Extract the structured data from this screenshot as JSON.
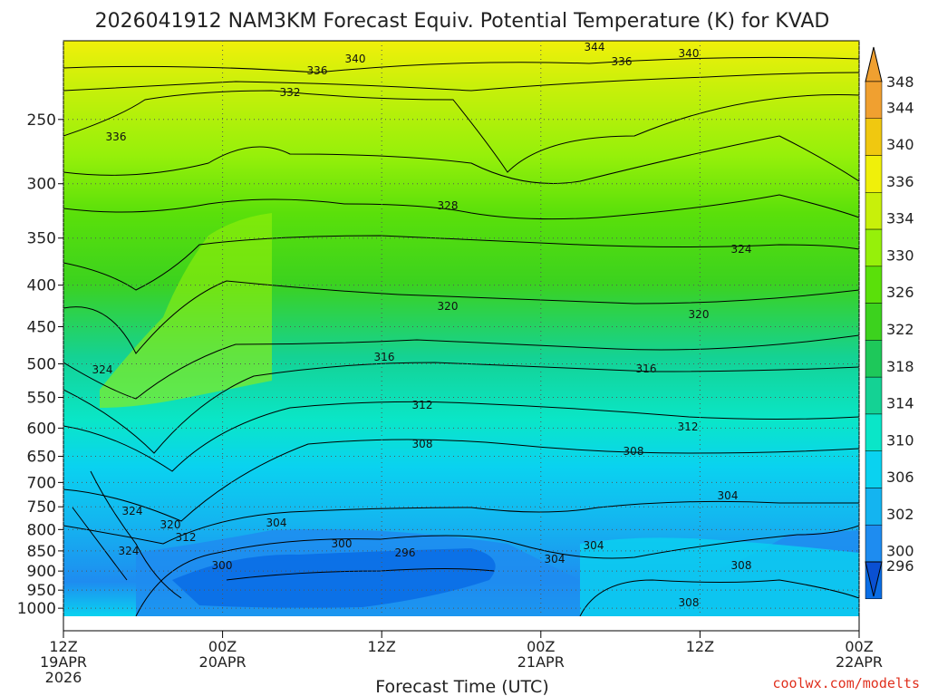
{
  "chart_data": {
    "type": "heatmap",
    "title": "2026041912 NAM3KM Forecast Equiv. Potential Temperature (K) for KVAD",
    "xlabel": "Forecast Time (UTC)",
    "ylabel": "",
    "y_ticks": [
      "250",
      "300",
      "350",
      "400",
      "450",
      "500",
      "550",
      "600",
      "650",
      "700",
      "750",
      "800",
      "850",
      "900",
      "950",
      "1000"
    ],
    "x_ticks": [
      {
        "line1": "12Z",
        "line2": "19APR",
        "line3": "2026"
      },
      {
        "line1": "00Z",
        "line2": "20APR",
        "line3": ""
      },
      {
        "line1": "12Z",
        "line2": "",
        "line3": ""
      },
      {
        "line1": "00Z",
        "line2": "21APR",
        "line3": ""
      },
      {
        "line1": "12Z",
        "line2": "",
        "line3": ""
      },
      {
        "line1": "00Z",
        "line2": "22APR",
        "line3": ""
      }
    ],
    "x_range_hours": [
      0,
      60
    ],
    "y_range_hpa": [
      200,
      1010
    ],
    "contour_labels": [
      "344",
      "340",
      "336",
      "332",
      "328",
      "324",
      "320",
      "316",
      "312",
      "308",
      "304",
      "300",
      "296"
    ],
    "colorbar": {
      "values": [
        348,
        344,
        340,
        336,
        334,
        330,
        326,
        322,
        318,
        314,
        310,
        306,
        302,
        300,
        296
      ],
      "colors": [
        "#f0a030",
        "#f0c810",
        "#f0f00a",
        "#c8f00a",
        "#96f00a",
        "#5ae00a",
        "#3cd21e",
        "#1ec85a",
        "#14d294",
        "#0ae6c8",
        "#0ad2f0",
        "#14b4f0",
        "#1e8cf0",
        "#0a6ee6",
        "#0a50d2"
      ]
    },
    "grid": true,
    "legend_placement": "right"
  },
  "credit": "coolwx.com/modelts"
}
